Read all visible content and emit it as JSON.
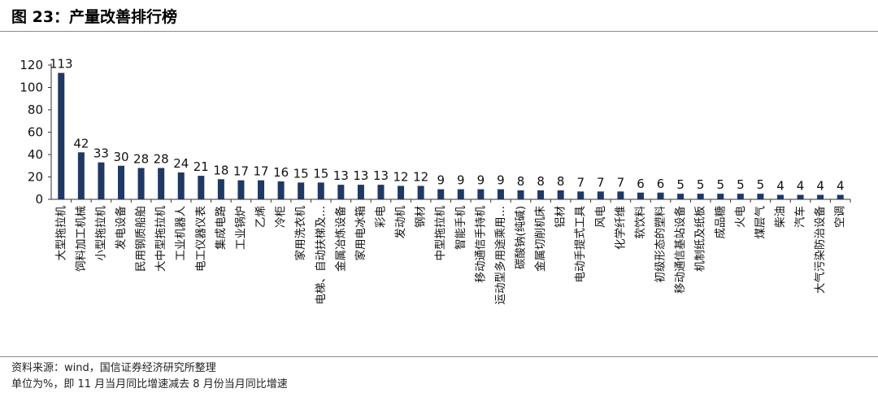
{
  "header": {
    "title": "图 23：产量改善排行榜"
  },
  "footer": {
    "source": "资料来源：wind，国信证券经济研究所整理",
    "note": "单位为%，即 11 月当月同比增速减去 8 月份当月同比增速"
  },
  "chart_data": {
    "type": "bar",
    "title": "",
    "xlabel": "",
    "ylabel": "",
    "ylim": [
      0,
      120
    ],
    "yticks": [
      "0",
      "20",
      "40",
      "60",
      "80",
      "100",
      "120"
    ],
    "bar_color": "#1f3864",
    "grid": false,
    "categories": [
      "大型拖拉机",
      "饲料加工机械",
      "小型拖拉机",
      "发电设备",
      "民用钢质船舶",
      "大中型拖拉机",
      "工业机器人",
      "电工仪器仪表",
      "集成电路",
      "工业锅炉",
      "乙烯",
      "冷柜",
      "家用洗衣机",
      "电梯、自动扶梯及…",
      "金属冶炼设备",
      "家用电冰箱",
      "彩电",
      "发动机",
      "钢材",
      "中型拖拉机",
      "智能手机",
      "移动通信手持机",
      "运动型多用途乘用…",
      "碳酸钠(纯碱)",
      "金属切削机床",
      "铝材",
      "电动手提式工具",
      "风电",
      "化学纤维",
      "软饮料",
      "初级形态的塑料",
      "移动通信基站设备",
      "机制纸及纸板",
      "成品糖",
      "火电",
      "煤层气",
      "柴油",
      "汽车",
      "大气污染防治设备",
      "空调"
    ],
    "values": [
      113,
      42,
      33,
      30,
      28,
      28,
      24,
      21,
      18,
      17,
      17,
      16,
      15,
      15,
      13,
      13,
      13,
      12,
      12,
      9,
      9,
      9,
      9,
      8,
      8,
      8,
      7,
      7,
      7,
      6,
      6,
      5,
      5,
      5,
      5,
      5,
      4,
      4,
      4,
      4
    ]
  }
}
